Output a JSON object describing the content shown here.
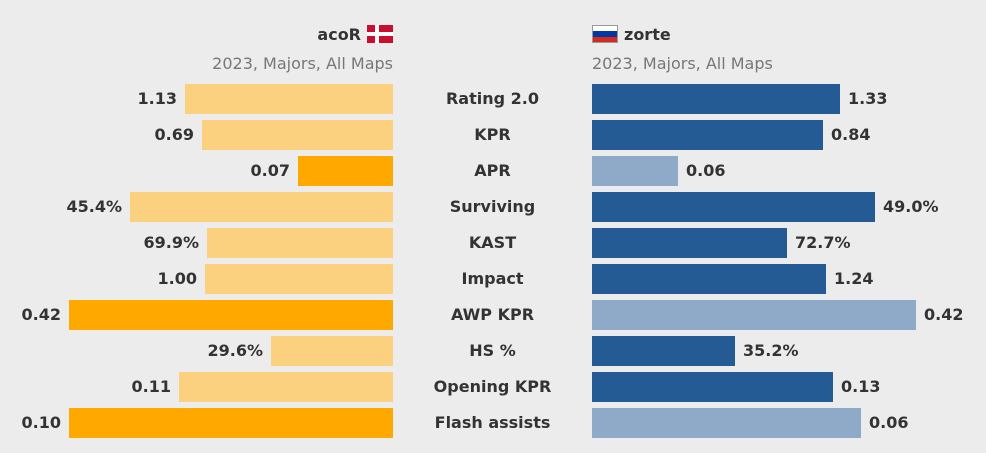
{
  "players": {
    "left": {
      "name": "acoR",
      "flag": "denmark-flag-icon",
      "subtitle": "2023, Majors, All Maps"
    },
    "right": {
      "name": "zorte",
      "flag": "russia-flag-icon",
      "subtitle": "2023, Majors, All Maps"
    }
  },
  "colors": {
    "left_normal": "#fbd17f",
    "left_highlight": "#ffa800",
    "right_normal": "#255b94",
    "right_dim": "#8eaac8",
    "text": "#333333",
    "subtitle": "#777777",
    "background": "#ececec"
  },
  "chart_data": {
    "type": "bar",
    "orientation": "horizontal-diverging",
    "categories": [
      "Rating 2.0",
      "KPR",
      "APR",
      "Surviving",
      "KAST",
      "Impact",
      "AWP KPR",
      "HS %",
      "Opening KPR",
      "Flash assists"
    ],
    "series": [
      {
        "name": "acoR",
        "values": [
          1.13,
          0.69,
          0.07,
          45.4,
          69.9,
          1.0,
          0.42,
          29.6,
          0.11,
          0.1
        ],
        "labels": [
          "1.13",
          "0.69",
          "0.07",
          "45.4%",
          "69.9%",
          "1.00",
          "0.42",
          "29.6%",
          "0.11",
          "0.10"
        ],
        "highlight": [
          false,
          false,
          true,
          false,
          false,
          false,
          true,
          false,
          false,
          true
        ]
      },
      {
        "name": "zorte",
        "values": [
          1.33,
          0.84,
          0.06,
          49.0,
          72.7,
          1.24,
          0.42,
          35.2,
          0.13,
          0.06
        ],
        "labels": [
          "1.33",
          "0.84",
          "0.06",
          "49.0%",
          "72.7%",
          "1.24",
          "0.42",
          "35.2%",
          "0.13",
          "0.06"
        ],
        "dim": [
          false,
          false,
          true,
          false,
          false,
          false,
          true,
          false,
          false,
          true
        ]
      }
    ],
    "relative_fill": {
      "left": [
        0.643,
        0.59,
        0.294,
        0.811,
        0.574,
        0.58,
        1.0,
        0.376,
        0.661,
        1.0
      ],
      "right": [
        0.764,
        0.713,
        0.266,
        0.872,
        0.601,
        0.722,
        1.0,
        0.441,
        0.743,
        0.83
      ]
    }
  }
}
